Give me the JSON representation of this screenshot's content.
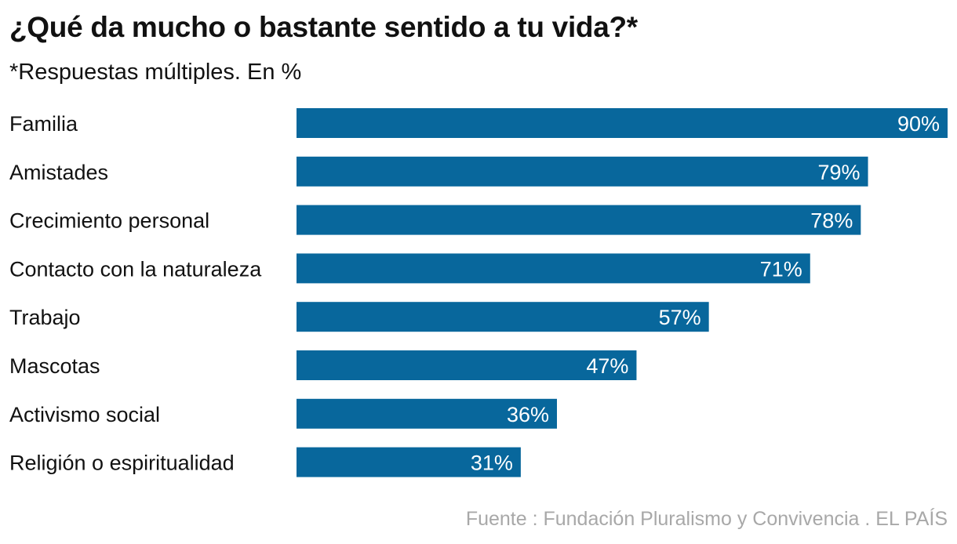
{
  "chart_data": {
    "type": "bar",
    "orientation": "horizontal",
    "title": "¿Qué da mucho o bastante sentido a tu vida?*",
    "subtitle": "*Respuestas múltiples. En %",
    "categories": [
      "Familia",
      "Amistades",
      "Crecimiento personal",
      "Contacto con la naturaleza",
      "Trabajo",
      "Mascotas",
      "Activismo social",
      "Religión o espiritualidad"
    ],
    "values": [
      90,
      79,
      78,
      71,
      57,
      47,
      36,
      31
    ],
    "value_labels": [
      "90%",
      "79%",
      "78%",
      "71%",
      "57%",
      "47%",
      "36%",
      "31%"
    ],
    "xlim": [
      0,
      90
    ],
    "grid": false,
    "bar_color": "#08679c",
    "label_color": "#ffffff"
  },
  "source": "Fuente : Fundación Pluralismo y Convivencia . EL PAÍS"
}
